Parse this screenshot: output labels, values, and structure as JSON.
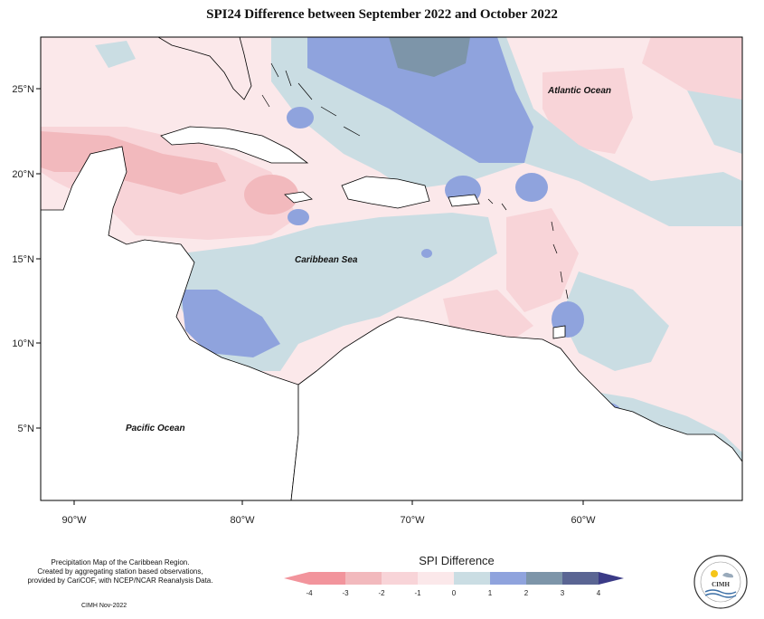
{
  "title": "SPI24 Difference between September 2022 and October 2022",
  "map": {
    "lat_ticks": [
      "25°N",
      "20°N",
      "15°N",
      "10°N",
      "5°N"
    ],
    "lon_ticks": [
      "90°W",
      "80°W",
      "70°W",
      "60°W"
    ],
    "labels": {
      "atlantic": "Atlantic Ocean",
      "caribbean": "Caribbean Sea",
      "pacific": "Pacific Ocean"
    }
  },
  "credits": {
    "line1": "Precipitation Map of the Caribbean Region.",
    "line2": "Created by aggregating station based observations,",
    "line3": "provided by CariCOF, with NCEP/NCAR Reanalysis Data.",
    "date": "CIMH Nov-2022"
  },
  "legend": {
    "title": "SPI Difference",
    "tick_labels": [
      "-4",
      "-3",
      "-2",
      "-1",
      "0",
      "1",
      "2",
      "3",
      "4"
    ],
    "colors": [
      "#f2949c",
      "#f2b9bd",
      "#f8d4d8",
      "#fbe8ea",
      "#cadde3",
      "#8fa3dd",
      "#7d95a9",
      "#5a6593",
      "#3a3a86"
    ]
  },
  "logo": {
    "text": "CIMH"
  }
}
